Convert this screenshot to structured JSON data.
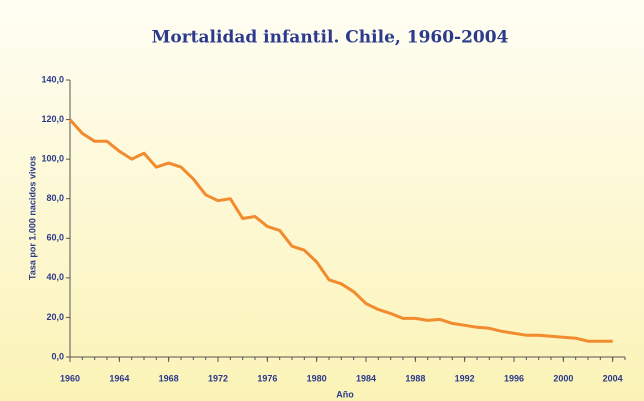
{
  "chart_data": {
    "type": "line",
    "title": "Mortalidad infantil. Chile, 1960-2004",
    "xlabel": "Año",
    "ylabel": "Tasa por 1.000 nacidos vivos",
    "x": [
      1960,
      1961,
      1962,
      1963,
      1964,
      1965,
      1966,
      1967,
      1968,
      1969,
      1970,
      1971,
      1972,
      1973,
      1974,
      1975,
      1976,
      1977,
      1978,
      1979,
      1980,
      1981,
      1982,
      1983,
      1984,
      1985,
      1986,
      1987,
      1988,
      1989,
      1990,
      1991,
      1992,
      1993,
      1994,
      1995,
      1996,
      1997,
      1998,
      1999,
      2000,
      2001,
      2002,
      2003,
      2004
    ],
    "series": [
      {
        "name": "Tasa",
        "color": "#f28a2e",
        "values": [
          120,
          113,
          109,
          109,
          104,
          100,
          103,
          96,
          98,
          96,
          90,
          82,
          79,
          80,
          70,
          71,
          66,
          64,
          56,
          54,
          48,
          39,
          37,
          33,
          27,
          24,
          22,
          19.5,
          19.5,
          18.5,
          19,
          17,
          16,
          15,
          14.5,
          13,
          12,
          11,
          11,
          10.5,
          10,
          9.5,
          8,
          8,
          8
        ]
      }
    ],
    "xlim": [
      1960,
      2005
    ],
    "xticks": [
      1960,
      1964,
      1968,
      1972,
      1976,
      1980,
      1984,
      1988,
      1992,
      1996,
      2000,
      2004
    ],
    "ylim": [
      0,
      140
    ],
    "yticks": [
      {
        "value": 0,
        "label": "0,0"
      },
      {
        "value": 20,
        "label": "20,0"
      },
      {
        "value": 40,
        "label": "40,0"
      },
      {
        "value": 60,
        "label": "60,0"
      },
      {
        "value": 80,
        "label": "80,0"
      },
      {
        "value": 100,
        "label": "100,0"
      },
      {
        "value": 120,
        "label": "120,0"
      },
      {
        "value": 140,
        "label": "140,0"
      }
    ]
  }
}
